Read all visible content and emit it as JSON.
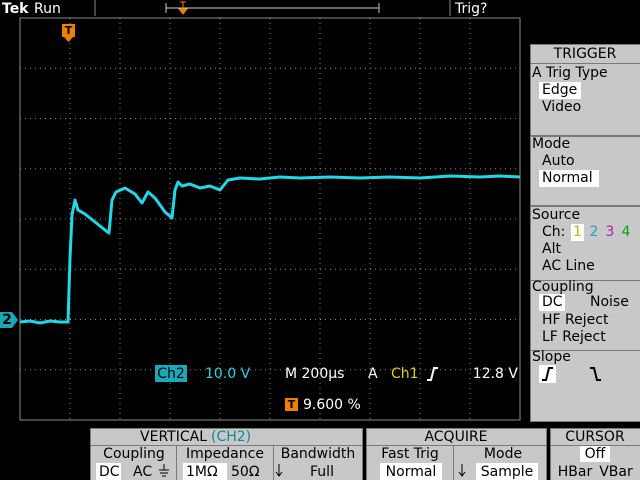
{
  "header": {
    "brand": "Tek",
    "state": "Run",
    "trigger_status": "Trig?"
  },
  "markers": {
    "trigger": "T",
    "channel": "2"
  },
  "readout": {
    "channel": "Ch2",
    "scale": "10.0 V",
    "timebase": "M 200µs",
    "trigger_mode": "A",
    "trigger_source": "Ch1",
    "trigger_level": "12.8 V",
    "trigger_position": "9.600 %"
  },
  "trigger_menu": {
    "title": "TRIGGER",
    "type": {
      "title": "A Trig Type",
      "options": [
        "Edge",
        "Video"
      ]
    },
    "mode": {
      "title": "Mode",
      "options": [
        "Auto",
        "Normal"
      ]
    },
    "source": {
      "title": "Source",
      "channel_label": "Ch:",
      "channels": [
        "1",
        "2",
        "3",
        "4"
      ],
      "options": [
        "Alt",
        "AC Line"
      ]
    },
    "coupling": {
      "title": "Coupling",
      "options": [
        "DC",
        "Noise",
        "HF Reject",
        "LF Reject"
      ]
    },
    "slope": {
      "title": "Slope"
    }
  },
  "vertical_menu": {
    "title": "VERTICAL",
    "channel": "(CH2)",
    "coupling": {
      "title": "Coupling",
      "options": [
        "DC",
        "AC"
      ]
    },
    "impedance": {
      "title": "Impedance",
      "options": [
        "1MΩ",
        "50Ω"
      ]
    },
    "bandwidth": {
      "title": "Bandwidth",
      "value": "Full"
    }
  },
  "acquire_menu": {
    "title": "ACQUIRE",
    "fast_trig": {
      "title": "Fast Trig",
      "value": "Normal"
    },
    "mode": {
      "title": "Mode",
      "value": "Sample"
    }
  },
  "cursor_menu": {
    "title": "CURSOR",
    "options": [
      "Off",
      "HBar",
      "VBar"
    ]
  }
}
